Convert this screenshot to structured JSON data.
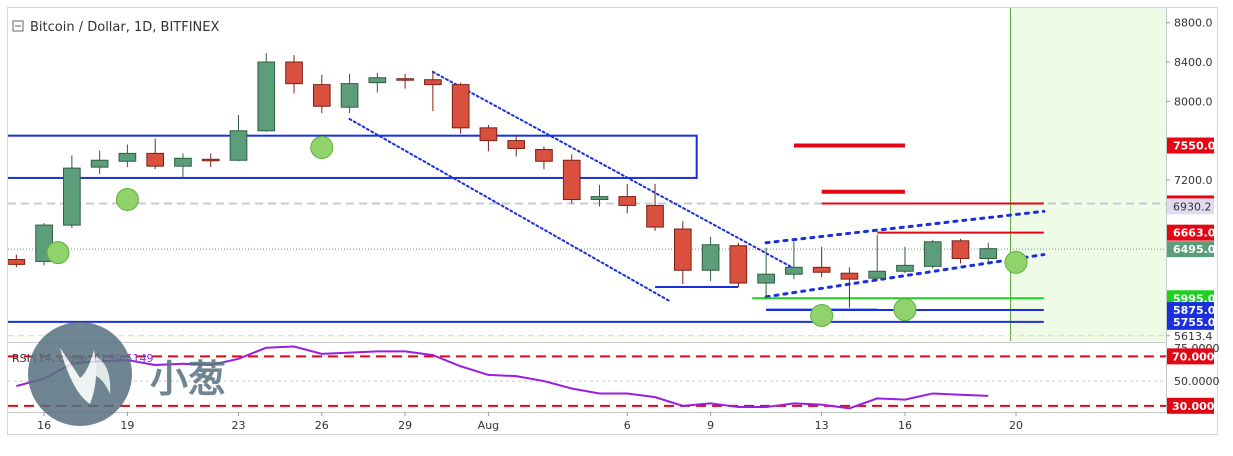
{
  "header": {
    "title": "Bitcoin / Dollar, 1D, BITFINEX",
    "toggle_icon": "collapse-square-icon"
  },
  "watermark": {
    "text": "小葱",
    "logo": "onion-leaf-logo-icon"
  },
  "chart_data": {
    "type": "candlestick",
    "title": "Bitcoin / Dollar, 1D, BITFINEX",
    "ylim": [
      5560,
      8950
    ],
    "y_ticks": [
      "8800.0",
      "8400.0",
      "8000.0",
      "7200.0",
      "5613.4"
    ],
    "x_ticks": [
      {
        "label": "16",
        "day": 16
      },
      {
        "label": "19",
        "day": 19
      },
      {
        "label": "23",
        "day": 23
      },
      {
        "label": "26",
        "day": 26
      },
      {
        "label": "29",
        "day": 29
      },
      {
        "label": "Aug",
        "day": 32
      },
      {
        "label": "6",
        "day": 37
      },
      {
        "label": "9",
        "day": 40
      },
      {
        "label": "13",
        "day": 44
      },
      {
        "label": "16",
        "day": 47
      },
      {
        "label": "20",
        "day": 51
      }
    ],
    "candles": [
      {
        "day": 15,
        "o": 6390,
        "h": 6440,
        "l": 6310,
        "c": 6340
      },
      {
        "day": 16,
        "o": 6370,
        "h": 6760,
        "l": 6330,
        "c": 6740
      },
      {
        "day": 17,
        "o": 6740,
        "h": 7450,
        "l": 6710,
        "c": 7320
      },
      {
        "day": 18,
        "o": 7330,
        "h": 7500,
        "l": 7260,
        "c": 7400
      },
      {
        "day": 19,
        "o": 7390,
        "h": 7560,
        "l": 7330,
        "c": 7470
      },
      {
        "day": 20,
        "o": 7470,
        "h": 7620,
        "l": 7310,
        "c": 7340
      },
      {
        "day": 21,
        "o": 7340,
        "h": 7470,
        "l": 7230,
        "c": 7420
      },
      {
        "day": 22,
        "o": 7410,
        "h": 7470,
        "l": 7330,
        "c": 7400
      },
      {
        "day": 23,
        "o": 7400,
        "h": 7860,
        "l": 7390,
        "c": 7700
      },
      {
        "day": 24,
        "o": 7700,
        "h": 8490,
        "l": 7690,
        "c": 8400
      },
      {
        "day": 25,
        "o": 8400,
        "h": 8470,
        "l": 8080,
        "c": 8180
      },
      {
        "day": 26,
        "o": 8170,
        "h": 8270,
        "l": 7880,
        "c": 7950
      },
      {
        "day": 27,
        "o": 7940,
        "h": 8280,
        "l": 7880,
        "c": 8180
      },
      {
        "day": 28,
        "o": 8190,
        "h": 8290,
        "l": 8090,
        "c": 8240
      },
      {
        "day": 29,
        "o": 8230,
        "h": 8280,
        "l": 8130,
        "c": 8220
      },
      {
        "day": 30,
        "o": 8220,
        "h": 8300,
        "l": 7900,
        "c": 8170
      },
      {
        "day": 31,
        "o": 8170,
        "h": 8190,
        "l": 7670,
        "c": 7730
      },
      {
        "day": 32,
        "o": 7730,
        "h": 7760,
        "l": 7490,
        "c": 7600
      },
      {
        "day": 33,
        "o": 7600,
        "h": 7640,
        "l": 7440,
        "c": 7520
      },
      {
        "day": 34,
        "o": 7510,
        "h": 7540,
        "l": 7310,
        "c": 7390
      },
      {
        "day": 35,
        "o": 7400,
        "h": 7460,
        "l": 6960,
        "c": 7000
      },
      {
        "day": 36,
        "o": 7000,
        "h": 7150,
        "l": 6930,
        "c": 7030
      },
      {
        "day": 37,
        "o": 7030,
        "h": 7160,
        "l": 6860,
        "c": 6940
      },
      {
        "day": 38,
        "o": 6940,
        "h": 7160,
        "l": 6680,
        "c": 6720
      },
      {
        "day": 39,
        "o": 6700,
        "h": 6780,
        "l": 6140,
        "c": 6280
      },
      {
        "day": 40,
        "o": 6280,
        "h": 6620,
        "l": 6170,
        "c": 6540
      },
      {
        "day": 41,
        "o": 6530,
        "h": 6560,
        "l": 6110,
        "c": 6150
      },
      {
        "day": 42,
        "o": 6150,
        "h": 6510,
        "l": 5990,
        "c": 6240
      },
      {
        "day": 43,
        "o": 6240,
        "h": 6570,
        "l": 6190,
        "c": 6310
      },
      {
        "day": 44,
        "o": 6310,
        "h": 6520,
        "l": 6210,
        "c": 6260
      },
      {
        "day": 45,
        "o": 6250,
        "h": 6310,
        "l": 5900,
        "c": 6190
      },
      {
        "day": 46,
        "o": 6200,
        "h": 6640,
        "l": 6170,
        "c": 6270
      },
      {
        "day": 47,
        "o": 6270,
        "h": 6520,
        "l": 6250,
        "c": 6330
      },
      {
        "day": 48,
        "o": 6320,
        "h": 6590,
        "l": 6300,
        "c": 6570
      },
      {
        "day": 49,
        "o": 6580,
        "h": 6600,
        "l": 6350,
        "c": 6400
      },
      {
        "day": 50,
        "o": 6400,
        "h": 6560,
        "l": 6360,
        "c": 6500
      }
    ],
    "current_price": 6495.0,
    "price_badges": [
      {
        "label": "7550.0",
        "price": 7550,
        "color": "#e30613"
      },
      {
        "label": "6960.0",
        "price": 6960,
        "color": "#e30613"
      },
      {
        "label": "6930.2",
        "price": 6930,
        "color": "#e0dcef"
      },
      {
        "label": "6663.0",
        "price": 6663,
        "color": "#e30613"
      },
      {
        "label": "6495.0",
        "price": 6495,
        "color": "#5d9e7a"
      },
      {
        "label": "5995.0",
        "price": 5995,
        "color": "#1fd11f"
      },
      {
        "label": "5875.0",
        "price": 5875,
        "color": "#1a2fe0"
      },
      {
        "label": "5755.0",
        "price": 5755,
        "color": "#1a2fe0"
      }
    ],
    "resistance_lines": [
      {
        "price": 7550,
        "from": 43,
        "to": 47
      },
      {
        "price": 7080,
        "from": 44,
        "to": 47
      },
      {
        "price": 6960,
        "from": 44,
        "to": 52
      },
      {
        "price": 6663,
        "from": 46,
        "to": 52
      }
    ],
    "support_lines": [
      {
        "price": 5995,
        "from": 41.5,
        "to": 52,
        "color": "#1fd11f"
      },
      {
        "price": 5875,
        "from": 42,
        "to": 52,
        "color": "#1a2fe0"
      },
      {
        "price": 5755,
        "from": 14.5,
        "to": 52,
        "color": "#1a2fe0"
      },
      {
        "price": 6110,
        "from": 38,
        "to": 41,
        "color": "#1a2fe0"
      },
      {
        "price": 5880,
        "from": 42,
        "to": 46,
        "color": "#1a2fe0"
      }
    ],
    "range_box": {
      "from": 14.5,
      "to": 39.5,
      "top": 7650,
      "bottom": 7220
    },
    "channel_lines": [
      {
        "d1": 30,
        "p1": 8300,
        "d2": 43,
        "p2": 6300
      },
      {
        "d1": 27,
        "p1": 7820,
        "d2": 38.5,
        "p2": 5970
      },
      {
        "d1": 42,
        "p1": 6560,
        "d2": 52,
        "p2": 6880
      },
      {
        "d1": 42,
        "p1": 6010,
        "d2": 52,
        "p2": 6440
      }
    ],
    "markers": [
      {
        "day": 16.5,
        "price": 6460
      },
      {
        "day": 19,
        "price": 7000
      },
      {
        "day": 26,
        "price": 7530
      },
      {
        "day": 44,
        "price": 5820
      },
      {
        "day": 47,
        "price": 5880
      },
      {
        "day": 51,
        "price": 6360
      }
    ],
    "forecast_zone": {
      "from": 50.8
    },
    "rsi": {
      "label": "RSI (14, close, 3)",
      "value_text": "39.5149",
      "levels": [
        "70.0000",
        "50.0000",
        "30.0000"
      ],
      "top_level": "75.0000",
      "ylim": [
        25,
        80
      ],
      "values": [
        {
          "day": 15,
          "v": 46
        },
        {
          "day": 16,
          "v": 52
        },
        {
          "day": 17,
          "v": 64
        },
        {
          "day": 18,
          "v": 66
        },
        {
          "day": 19,
          "v": 67
        },
        {
          "day": 20,
          "v": 63
        },
        {
          "day": 21,
          "v": 64
        },
        {
          "day": 22,
          "v": 63
        },
        {
          "day": 23,
          "v": 68
        },
        {
          "day": 24,
          "v": 77
        },
        {
          "day": 25,
          "v": 78
        },
        {
          "day": 26,
          "v": 72
        },
        {
          "day": 27,
          "v": 73
        },
        {
          "day": 28,
          "v": 74
        },
        {
          "day": 29,
          "v": 74
        },
        {
          "day": 30,
          "v": 71
        },
        {
          "day": 31,
          "v": 62
        },
        {
          "day": 32,
          "v": 55
        },
        {
          "day": 33,
          "v": 54
        },
        {
          "day": 34,
          "v": 50
        },
        {
          "day": 35,
          "v": 44
        },
        {
          "day": 36,
          "v": 40
        },
        {
          "day": 37,
          "v": 40
        },
        {
          "day": 38,
          "v": 37
        },
        {
          "day": 39,
          "v": 30
        },
        {
          "day": 40,
          "v": 32
        },
        {
          "day": 41,
          "v": 29
        },
        {
          "day": 42,
          "v": 29
        },
        {
          "day": 43,
          "v": 32
        },
        {
          "day": 44,
          "v": 31
        },
        {
          "day": 45,
          "v": 28
        },
        {
          "day": 46,
          "v": 36
        },
        {
          "day": 47,
          "v": 35
        },
        {
          "day": 48,
          "v": 40
        },
        {
          "day": 49,
          "v": 39
        },
        {
          "day": 50,
          "v": 38
        }
      ]
    }
  }
}
